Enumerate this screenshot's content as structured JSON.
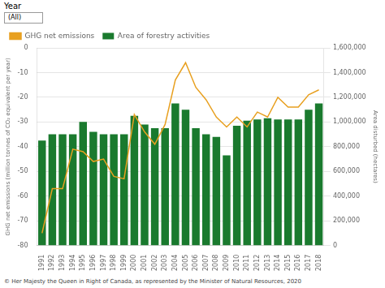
{
  "chart_data": {
    "type": "bar",
    "categories": [
      "1991",
      "1992",
      "1993",
      "1994",
      "1995",
      "1996",
      "1997",
      "1998",
      "1999",
      "2000",
      "2001",
      "2002",
      "2003",
      "2004",
      "2005",
      "2006",
      "2007",
      "2008",
      "2009",
      "2010",
      "2011",
      "2012",
      "2013",
      "2014",
      "2015",
      "2016",
      "2017",
      "2018"
    ],
    "series": [
      {
        "name": "GHG net emissions",
        "type": "line",
        "color": "#e8a020",
        "values": [
          -75,
          -57,
          -57,
          -41,
          -42,
          -46,
          -45,
          -52,
          -53,
          -27,
          -34,
          -39,
          -31,
          -13,
          -6,
          -16,
          -21,
          -28,
          -32,
          -28,
          -32,
          -26,
          -28,
          -20,
          -24,
          -24,
          -19,
          -17
        ]
      },
      {
        "name": "Area of forestry activities",
        "type": "bar",
        "color": "#1a7a2e",
        "axis": "y2",
        "values": [
          850000,
          900000,
          900000,
          900000,
          1000000,
          920000,
          900000,
          900000,
          900000,
          1050000,
          980000,
          950000,
          950000,
          1150000,
          1100000,
          950000,
          900000,
          880000,
          730000,
          970000,
          1010000,
          1020000,
          1030000,
          1020000,
          1020000,
          1020000,
          1100000,
          1150000
        ]
      }
    ],
    "ylabel": "GHG net emissions (million tonnes of CO₂ equivalent per year)",
    "y2label": "Area disturbed (hectares)",
    "ylim": [
      -80,
      0
    ],
    "yticks": [
      0,
      -10,
      -20,
      -30,
      -40,
      -50,
      -60,
      -70,
      -80
    ],
    "y2lim": [
      0,
      1600000
    ],
    "y2ticks": [
      0,
      {
        "value": 200000,
        "label": "200,000"
      },
      {
        "value": 400000,
        "label": "400,000"
      },
      {
        "value": 600000,
        "label": "600,000"
      },
      {
        "value": 800000,
        "label": "800,000"
      },
      {
        "value": 1000000,
        "label": "1,000,000"
      },
      {
        "value": 1200000,
        "label": "1,200,000"
      },
      {
        "value": 1400000,
        "label": "1,400,000"
      },
      {
        "value": 1600000,
        "label": "1,600,000"
      }
    ],
    "grid": true,
    "legend": "upper left",
    "annotations": [
      "Year",
      "(All)",
      "© Her Majesty the Queen in Right of Canada, as represented by the Minister of Natural Resources, 2020"
    ]
  }
}
